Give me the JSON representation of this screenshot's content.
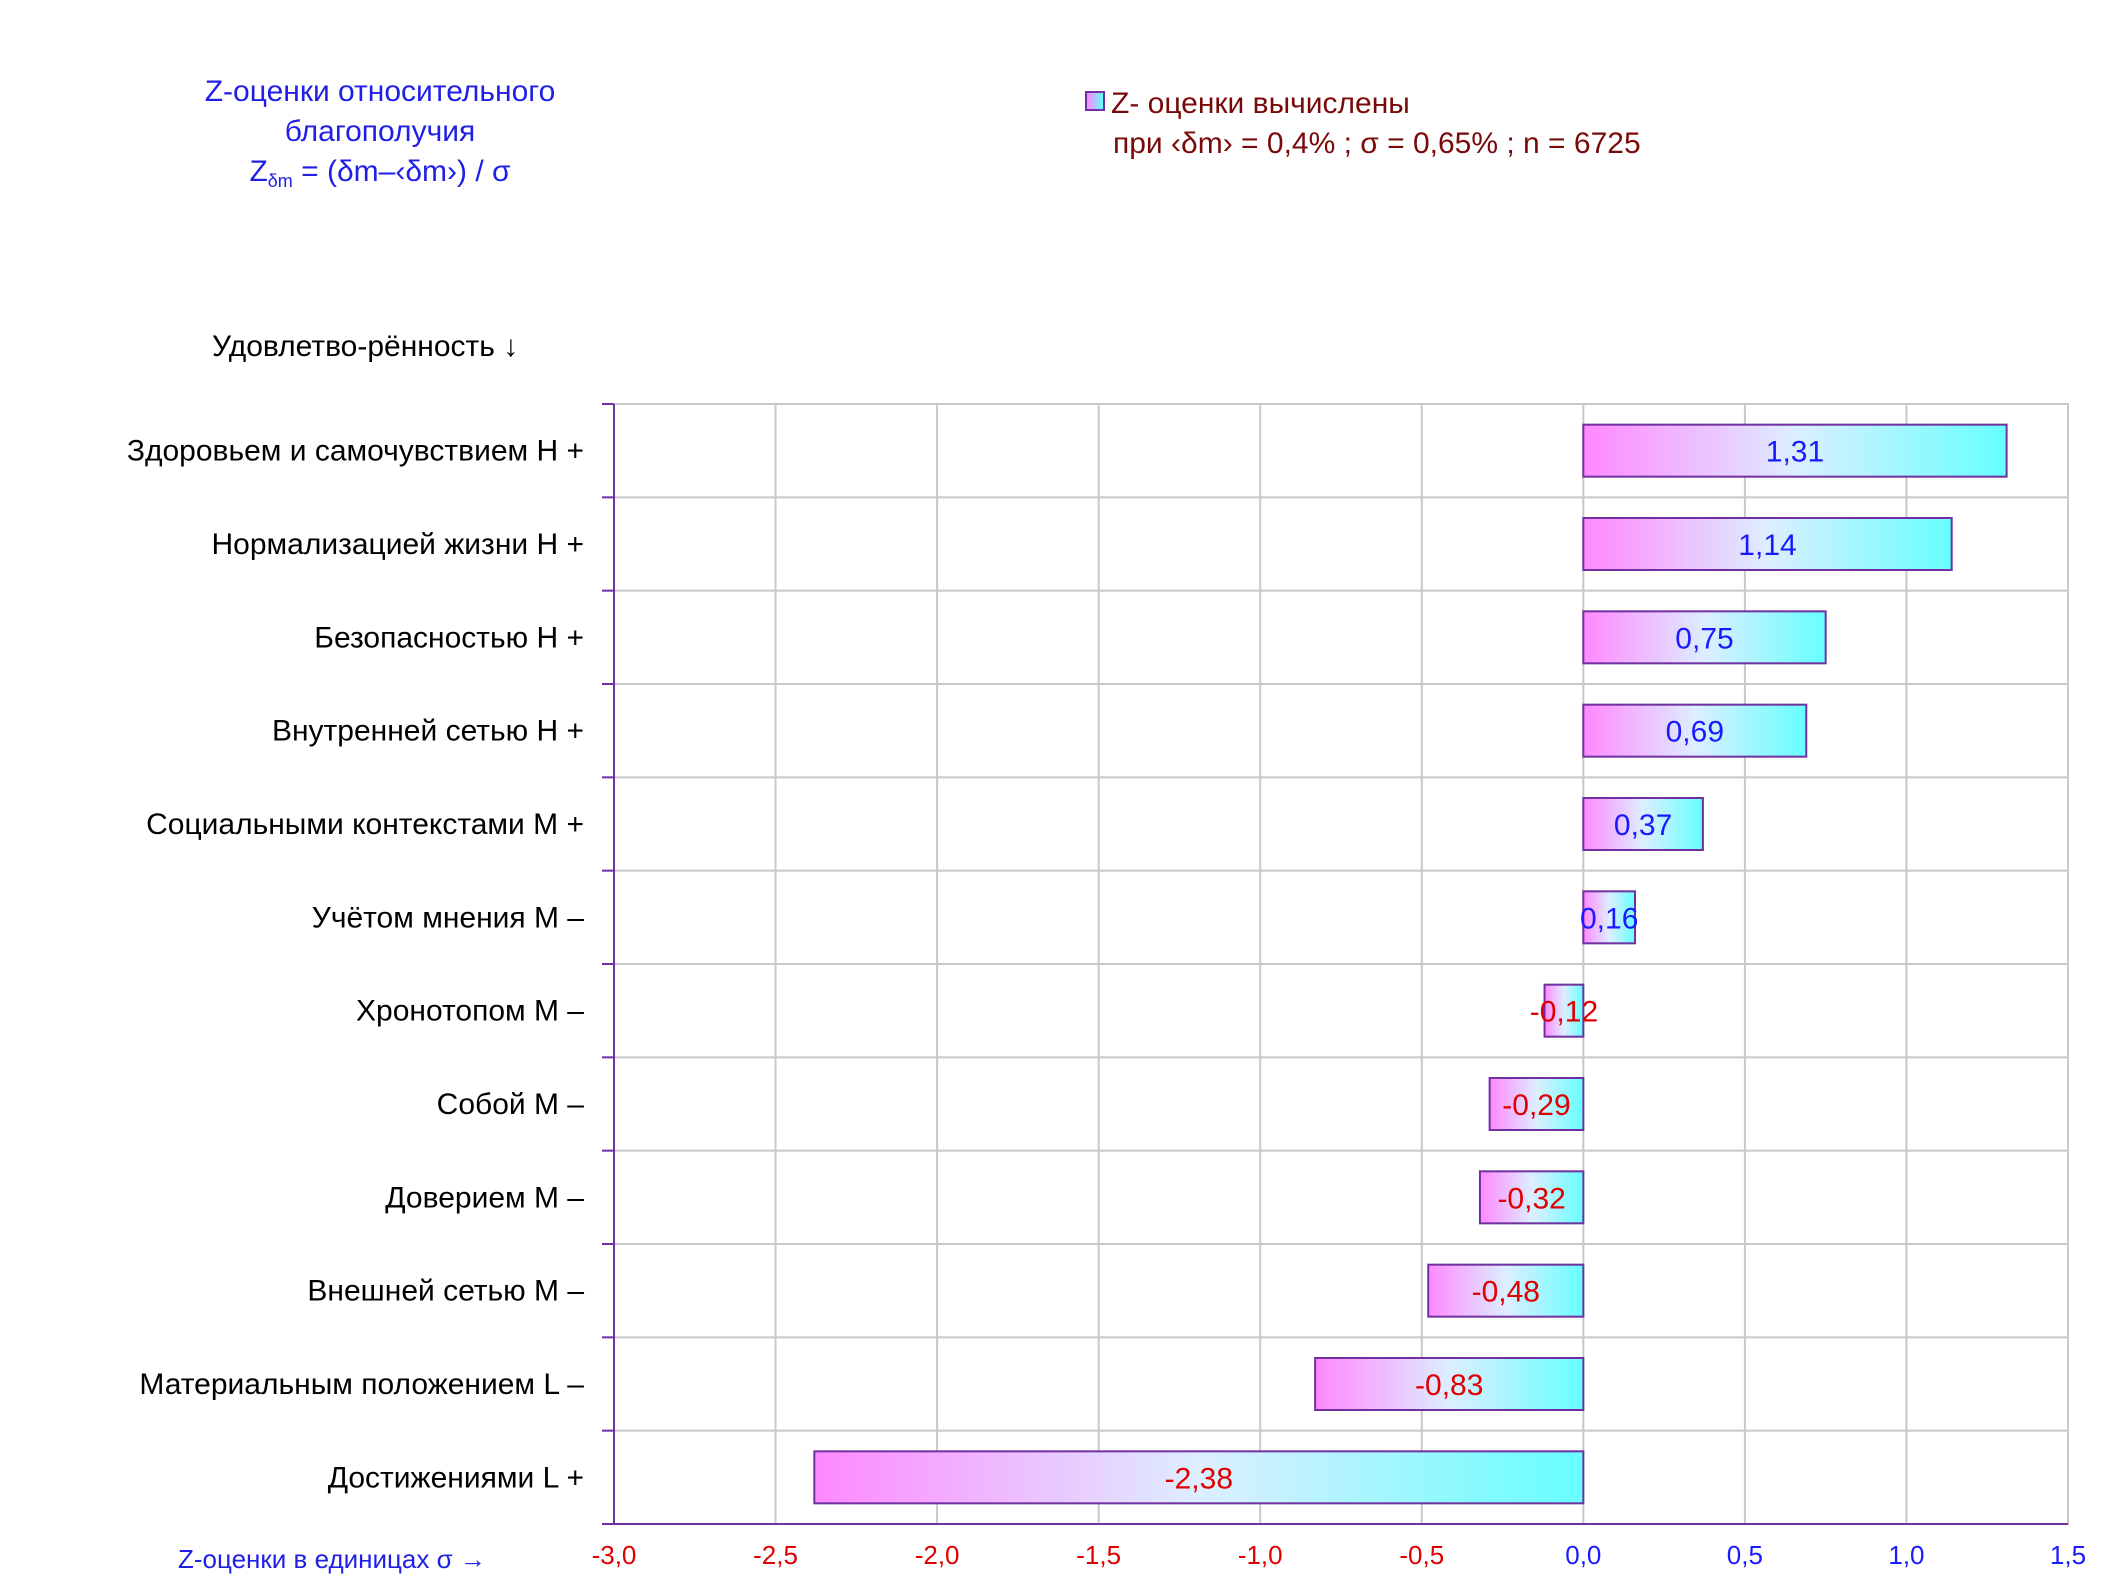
{
  "title": {
    "line1": "Z-оценки  относительного",
    "line2": "благополучия",
    "formula_prefix": "Z",
    "formula_sub": "δm",
    "formula_body": " = (δm–‹δm›) / σ"
  },
  "legend": {
    "line1": "Z- оценки вычислены",
    "line2": "при ‹δm› = 0,4% ; σ = 0,65% ; n = 6725"
  },
  "y_header": "Удовлетво-рённость ↓",
  "x_axis_caption": "Z-оценки в единицах σ →",
  "colors": {
    "bar_gradient_left": "#ff88ff",
    "bar_gradient_right": "#66ffff",
    "bar_border": "#7030a0",
    "positive_label": "#1a1aff",
    "negative_label": "#e00000",
    "axis_line": "#7030a0",
    "grid": "#c8c8c8"
  },
  "chart_data": {
    "type": "bar",
    "orientation": "horizontal",
    "categories": [
      "Здоровьем и самочувствием  Н +",
      "Нормализацией жизни  Н +",
      "Безопасностью  Н +",
      "Внутренней сетью  Н +",
      "Социальными контекстами  М +",
      "Учётом мнения  М –",
      "Хронотопом  М –",
      "Собой  М –",
      "Доверием  М –",
      "Внешней сетью  М –",
      "Материальным положением  L –",
      "Достижениями  L +"
    ],
    "values": [
      1.31,
      1.14,
      0.75,
      0.69,
      0.37,
      0.16,
      -0.12,
      -0.29,
      -0.32,
      -0.48,
      -0.83,
      -2.38
    ],
    "value_labels": [
      "1,31",
      "1,14",
      "0,75",
      "0,69",
      "0,37",
      "0,16",
      "-0,12",
      "-0,29",
      "-0,32",
      "-0,48",
      "-0,83",
      "-2,38"
    ],
    "xlim": [
      -3.0,
      1.5
    ],
    "x_ticks": [
      -3.0,
      -2.5,
      -2.0,
      -1.5,
      -1.0,
      -0.5,
      0.0,
      0.5,
      1.0,
      1.5
    ],
    "x_tick_labels": [
      "-3,0",
      "-2,5",
      "-2,0",
      "-1,5",
      "-1,0",
      "-0,5",
      "0,0",
      "0,5",
      "1,0",
      "1,5"
    ],
    "grid": true
  }
}
